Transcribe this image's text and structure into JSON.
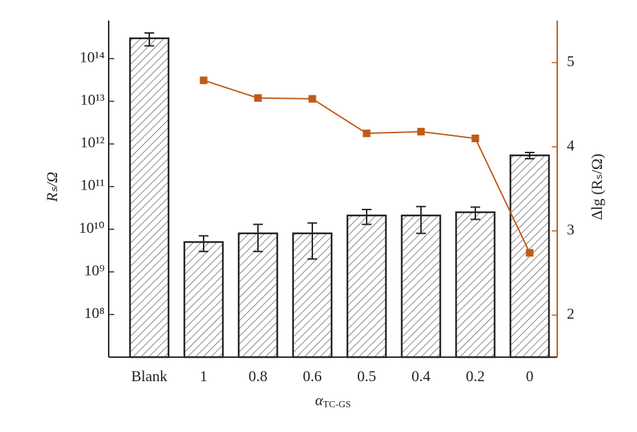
{
  "chart_data": {
    "type": "bar",
    "categories": [
      "Blank",
      "1",
      "0.8",
      "0.6",
      "0.5",
      "0.4",
      "0.2",
      "0"
    ],
    "series": [
      {
        "type": "bar",
        "values": [
          300000000000000.0,
          5000000000.0,
          8000000000.0,
          8000000000.0,
          21000000000.0,
          21000000000.0,
          25000000000.0,
          540000000000.0
        ],
        "errors": [
          100000000000000.0,
          2000000000.0,
          5000000000.0,
          6000000000.0,
          8000000000.0,
          13000000000.0,
          8000000000.0,
          90000000000.0
        ],
        "color": "#ffffff",
        "hatch": true
      },
      {
        "type": "line",
        "axis": "y2",
        "color": "#c05a1a",
        "values": [
          null,
          4.79,
          4.58,
          4.57,
          4.16,
          4.18,
          4.1,
          2.74
        ]
      }
    ],
    "ylabel": "Rₛ/Ω",
    "y2label": "Δlg (Rₛ/Ω)",
    "xlabel": {
      "symbol": "α",
      "subscript": "TC-GS"
    },
    "ylog": true,
    "ylim": [
      10000000.0,
      780000000000000.0
    ],
    "yticks": [
      {
        "value": 100000000.0,
        "label": "10⁸"
      },
      {
        "value": 1000000000.0,
        "label": "10⁹"
      },
      {
        "value": 10000000000.0,
        "label": "10¹⁰"
      },
      {
        "value": 100000000000.0,
        "label": "10¹¹"
      },
      {
        "value": 1000000000000.0,
        "label": "10¹²"
      },
      {
        "value": 10000000000000.0,
        "label": "10¹³"
      },
      {
        "value": 100000000000000.0,
        "label": "10¹⁴"
      }
    ],
    "y2lim": [
      1.5,
      5.5
    ],
    "y2ticks": [
      2,
      3,
      4,
      5
    ]
  }
}
